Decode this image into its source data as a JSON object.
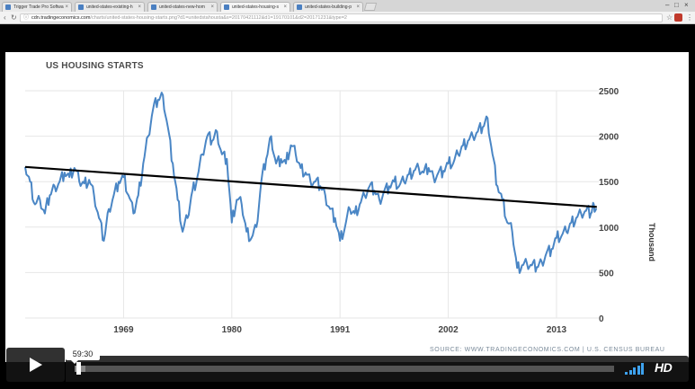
{
  "browser": {
    "tabs": [
      {
        "title": "Trigger Trade Pro Softwa",
        "active": false
      },
      {
        "title": "united-states-existing-h",
        "active": false
      },
      {
        "title": "united-states-new-hom",
        "active": false
      },
      {
        "title": "united-states-housing-s",
        "active": true
      },
      {
        "title": "united-states-building-p",
        "active": false
      }
    ],
    "url_host": "cdn.tradingeconomics.com",
    "url_path": "/charts/united-states-housing-starts.png?d1=unitedstahousta&s=20170421112&d1=19170101&d2=20171231&type=2"
  },
  "chart_data": {
    "type": "line",
    "title": "US HOUSING STARTS",
    "unit_label": "Thousand",
    "source": "SOURCE: WWW.TRADINGECONOMICS.COM | U.S. CENSUS BUREAU",
    "y_ticks": [
      0,
      500,
      1000,
      1500,
      2000,
      2500
    ],
    "x_ticks": [
      "1969",
      "1980",
      "1991",
      "2002",
      "2013"
    ],
    "ylim": [
      0,
      2500
    ],
    "xlim": [
      1959,
      2017.3
    ],
    "grid": true,
    "series": [
      {
        "name": "",
        "color": "#4a86c5",
        "points": [
          [
            1959.0,
            1660
          ],
          [
            1959.5,
            1500
          ],
          [
            1960.0,
            1250
          ],
          [
            1960.5,
            1300
          ],
          [
            1961.0,
            1150
          ],
          [
            1961.5,
            1350
          ],
          [
            1962.0,
            1450
          ],
          [
            1962.5,
            1500
          ],
          [
            1963.0,
            1600
          ],
          [
            1963.5,
            1550
          ],
          [
            1964.0,
            1650
          ],
          [
            1964.5,
            1500
          ],
          [
            1965.0,
            1480
          ],
          [
            1965.5,
            1520
          ],
          [
            1966.0,
            1350
          ],
          [
            1966.5,
            1100
          ],
          [
            1967.0,
            850
          ],
          [
            1967.5,
            1200
          ],
          [
            1968.0,
            1350
          ],
          [
            1968.5,
            1500
          ],
          [
            1969.0,
            1550
          ],
          [
            1969.5,
            1350
          ],
          [
            1970.0,
            1150
          ],
          [
            1970.5,
            1350
          ],
          [
            1971.0,
            1700
          ],
          [
            1971.5,
            2000
          ],
          [
            1972.0,
            2300
          ],
          [
            1972.5,
            2400
          ],
          [
            1973.0,
            2450
          ],
          [
            1973.5,
            2100
          ],
          [
            1974.0,
            1700
          ],
          [
            1974.5,
            1300
          ],
          [
            1975.0,
            950
          ],
          [
            1975.5,
            1100
          ],
          [
            1976.0,
            1400
          ],
          [
            1976.5,
            1550
          ],
          [
            1977.0,
            1800
          ],
          [
            1977.5,
            2000
          ],
          [
            1978.0,
            1950
          ],
          [
            1978.5,
            2050
          ],
          [
            1979.0,
            1800
          ],
          [
            1979.5,
            1750
          ],
          [
            1980.0,
            1050
          ],
          [
            1980.5,
            1300
          ],
          [
            1981.0,
            1250
          ],
          [
            1981.5,
            950
          ],
          [
            1982.0,
            880
          ],
          [
            1982.5,
            1000
          ],
          [
            1983.0,
            1500
          ],
          [
            1983.5,
            1750
          ],
          [
            1984.0,
            2000
          ],
          [
            1984.5,
            1700
          ],
          [
            1985.0,
            1750
          ],
          [
            1985.5,
            1700
          ],
          [
            1986.0,
            1900
          ],
          [
            1986.5,
            1800
          ],
          [
            1987.0,
            1650
          ],
          [
            1987.5,
            1600
          ],
          [
            1988.0,
            1500
          ],
          [
            1988.5,
            1500
          ],
          [
            1989.0,
            1450
          ],
          [
            1989.5,
            1350
          ],
          [
            1990.0,
            1200
          ],
          [
            1990.5,
            1100
          ],
          [
            1991.0,
            850
          ],
          [
            1991.5,
            1000
          ],
          [
            1992.0,
            1200
          ],
          [
            1992.5,
            1150
          ],
          [
            1993.0,
            1250
          ],
          [
            1993.5,
            1350
          ],
          [
            1994.0,
            1450
          ],
          [
            1994.5,
            1400
          ],
          [
            1995.0,
            1300
          ],
          [
            1995.5,
            1400
          ],
          [
            1996.0,
            1450
          ],
          [
            1996.5,
            1500
          ],
          [
            1997.0,
            1450
          ],
          [
            1997.5,
            1500
          ],
          [
            1998.0,
            1580
          ],
          [
            1998.5,
            1620
          ],
          [
            1999.0,
            1650
          ],
          [
            1999.5,
            1600
          ],
          [
            2000.0,
            1650
          ],
          [
            2000.5,
            1550
          ],
          [
            2001.0,
            1600
          ],
          [
            2001.5,
            1620
          ],
          [
            2002.0,
            1700
          ],
          [
            2002.5,
            1700
          ],
          [
            2003.0,
            1800
          ],
          [
            2003.5,
            1900
          ],
          [
            2004.0,
            1950
          ],
          [
            2004.5,
            2000
          ],
          [
            2005.0,
            2050
          ],
          [
            2005.5,
            2100
          ],
          [
            2006.0,
            2200
          ],
          [
            2006.5,
            1800
          ],
          [
            2007.0,
            1450
          ],
          [
            2007.5,
            1300
          ],
          [
            2008.0,
            1050
          ],
          [
            2008.5,
            950
          ],
          [
            2009.0,
            550
          ],
          [
            2009.5,
            580
          ],
          [
            2010.0,
            600
          ],
          [
            2010.5,
            580
          ],
          [
            2011.0,
            560
          ],
          [
            2011.5,
            620
          ],
          [
            2012.0,
            720
          ],
          [
            2012.5,
            760
          ],
          [
            2013.0,
            880
          ],
          [
            2013.5,
            900
          ],
          [
            2014.0,
            950
          ],
          [
            2014.5,
            1050
          ],
          [
            2015.0,
            1100
          ],
          [
            2015.5,
            1150
          ],
          [
            2016.0,
            1180
          ],
          [
            2016.5,
            1150
          ],
          [
            2016.8,
            1250
          ],
          [
            2017.1,
            1200
          ]
        ]
      }
    ],
    "trendline": {
      "color": "#000000",
      "points": [
        [
          1959.0,
          1662
        ],
        [
          2017.1,
          1222
        ]
      ]
    }
  },
  "player": {
    "time_tooltip": "59:30",
    "hd_label": "HD",
    "progress": 0.004,
    "buffered": 0.02,
    "volume_bars": 5,
    "accent_color": "#3ea2ee"
  }
}
